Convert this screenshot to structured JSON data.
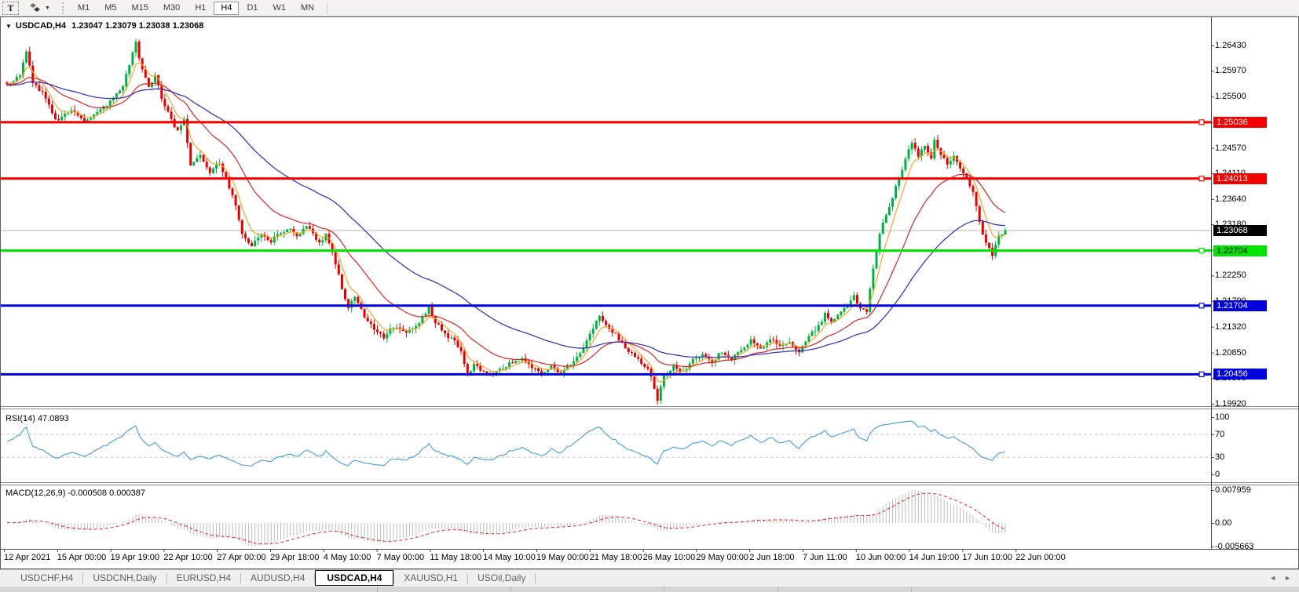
{
  "toolbar": {
    "text_tool_label": "T",
    "dropdown_glyph": "▼",
    "timeframes": [
      "M1",
      "M5",
      "M15",
      "M30",
      "H1",
      "H4",
      "D1",
      "W1",
      "MN"
    ],
    "active_timeframe": "H4"
  },
  "chart_header": {
    "collapse_glyph": "▼",
    "symbol": "USDCAD,H4",
    "ohlc": "1.23047 1.23079 1.23038 1.23068"
  },
  "indicators": {
    "rsi_label": "RSI(14) 47.0893",
    "macd_label": "MACD(12,26,9) -0.000508 0.000387"
  },
  "tabs": {
    "items": [
      {
        "label": "USDCHF,H4",
        "active": false
      },
      {
        "label": "USDCNH,Daily",
        "active": false
      },
      {
        "label": "EURUSD,H4",
        "active": false
      },
      {
        "label": "AUDUSD,H4",
        "active": false
      },
      {
        "label": "USDCAD,H4",
        "active": true
      },
      {
        "label": "XAUUSD,H1",
        "active": false
      },
      {
        "label": "USOil,Daily",
        "active": false
      }
    ],
    "scroll_left_glyph": "◄",
    "scroll_right_glyph": "►"
  },
  "chart_data": {
    "type": "candlestick",
    "symbol": "USDCAD",
    "period": "H4",
    "ohlc_current": {
      "open": 1.23047,
      "high": 1.23079,
      "low": 1.23038,
      "close": 1.23068
    },
    "bars": 311,
    "bull_color": "#00b140",
    "bear_color": "#e30000",
    "price_axis_ticks": [
      "1.26430",
      "1.25970",
      "1.25500",
      "1.25030",
      "1.24570",
      "1.24110",
      "1.23640",
      "1.23180",
      "1.22710",
      "1.22250",
      "1.21790",
      "1.21320",
      "1.20850",
      "1.20390",
      "1.19920"
    ],
    "close_waypoints": [
      [
        0,
        1.2572
      ],
      [
        4,
        1.259
      ],
      [
        6,
        1.2634
      ],
      [
        8,
        1.2576
      ],
      [
        12,
        1.2549
      ],
      [
        15,
        1.2506
      ],
      [
        20,
        1.2528
      ],
      [
        24,
        1.2506
      ],
      [
        28,
        1.2522
      ],
      [
        32,
        1.254
      ],
      [
        36,
        1.257
      ],
      [
        40,
        1.2648
      ],
      [
        42,
        1.2598
      ],
      [
        44,
        1.2568
      ],
      [
        46,
        1.2586
      ],
      [
        48,
        1.2548
      ],
      [
        51,
        1.2508
      ],
      [
        53,
        1.2486
      ],
      [
        55,
        1.2506
      ],
      [
        57,
        1.2428
      ],
      [
        60,
        1.2442
      ],
      [
        63,
        1.241
      ],
      [
        66,
        1.243
      ],
      [
        69,
        1.2386
      ],
      [
        71,
        1.2352
      ],
      [
        73,
        1.2302
      ],
      [
        76,
        1.2278
      ],
      [
        79,
        1.23
      ],
      [
        82,
        1.2288
      ],
      [
        85,
        1.2304
      ],
      [
        88,
        1.2312
      ],
      [
        90,
        1.2294
      ],
      [
        93,
        1.2318
      ],
      [
        95,
        1.23
      ],
      [
        97,
        1.2282
      ],
      [
        99,
        1.2302
      ],
      [
        101,
        1.227
      ],
      [
        104,
        1.2202
      ],
      [
        106,
        1.2168
      ],
      [
        108,
        1.2188
      ],
      [
        111,
        1.2152
      ],
      [
        114,
        1.213
      ],
      [
        117,
        1.2112
      ],
      [
        120,
        1.2132
      ],
      [
        124,
        1.212
      ],
      [
        128,
        1.214
      ],
      [
        131,
        1.2168
      ],
      [
        133,
        1.214
      ],
      [
        136,
        1.212
      ],
      [
        139,
        1.2104
      ],
      [
        141,
        1.2086
      ],
      [
        143,
        1.204
      ],
      [
        145,
        1.2062
      ],
      [
        148,
        1.205
      ],
      [
        151,
        1.2046
      ],
      [
        154,
        1.2058
      ],
      [
        157,
        1.2068
      ],
      [
        160,
        1.2072
      ],
      [
        163,
        1.206
      ],
      [
        166,
        1.2046
      ],
      [
        169,
        1.2062
      ],
      [
        172,
        1.2046
      ],
      [
        175,
        1.2066
      ],
      [
        178,
        1.2084
      ],
      [
        181,
        1.212
      ],
      [
        184,
        1.2152
      ],
      [
        186,
        1.2136
      ],
      [
        189,
        1.2118
      ],
      [
        192,
        1.2092
      ],
      [
        195,
        1.208
      ],
      [
        198,
        1.2062
      ],
      [
        200,
        1.2044
      ],
      [
        202,
        1.2
      ],
      [
        204,
        1.2042
      ],
      [
        207,
        1.2062
      ],
      [
        210,
        1.205
      ],
      [
        213,
        1.2072
      ],
      [
        216,
        1.2082
      ],
      [
        219,
        1.2066
      ],
      [
        222,
        1.2088
      ],
      [
        225,
        1.2072
      ],
      [
        228,
        1.2092
      ],
      [
        231,
        1.2106
      ],
      [
        234,
        1.209
      ],
      [
        237,
        1.2112
      ],
      [
        240,
        1.2096
      ],
      [
        243,
        1.2106
      ],
      [
        246,
        1.2086
      ],
      [
        249,
        1.2116
      ],
      [
        252,
        1.2132
      ],
      [
        254,
        1.2156
      ],
      [
        256,
        1.2142
      ],
      [
        258,
        1.215
      ],
      [
        261,
        1.2172
      ],
      [
        263,
        1.219
      ],
      [
        265,
        1.2162
      ],
      [
        267,
        1.2158
      ],
      [
        269,
        1.224
      ],
      [
        271,
        1.23
      ],
      [
        273,
        1.2338
      ],
      [
        275,
        1.2368
      ],
      [
        277,
        1.2402
      ],
      [
        279,
        1.2438
      ],
      [
        281,
        1.2466
      ],
      [
        283,
        1.2442
      ],
      [
        285,
        1.246
      ],
      [
        287,
        1.244
      ],
      [
        288,
        1.247
      ],
      [
        290,
        1.2444
      ],
      [
        292,
        1.2426
      ],
      [
        294,
        1.244
      ],
      [
        296,
        1.242
      ],
      [
        298,
        1.2404
      ],
      [
        300,
        1.2378
      ],
      [
        302,
        1.2322
      ],
      [
        304,
        1.2284
      ],
      [
        306,
        1.2262
      ],
      [
        308,
        1.2296
      ],
      [
        310,
        1.23068
      ]
    ],
    "moving_averages": [
      {
        "name": "fast",
        "period": 6,
        "color": "#f7a52a"
      },
      {
        "name": "medium",
        "period": 22,
        "color": "#e02424"
      },
      {
        "name": "slow",
        "period": 55,
        "color": "#2a2ac0"
      }
    ],
    "horizontal_lines": [
      {
        "price": 1.25036,
        "label": "1.25036",
        "color": "#f40000",
        "text": "#ffffff"
      },
      {
        "price": 1.24013,
        "label": "1.24013",
        "color": "#f40000",
        "text": "#ffffff"
      },
      {
        "price": 1.22704,
        "label": "1.22704",
        "color": "#00e400",
        "text": "#000000"
      },
      {
        "price": 1.21704,
        "label": "1.21704",
        "color": "#0000dc",
        "text": "#ffffff"
      },
      {
        "price": 1.20456,
        "label": "1.20456",
        "color": "#0000dc",
        "text": "#ffffff"
      }
    ],
    "current_price": {
      "price": 1.23068,
      "label": "1.23068",
      "line_color": "#b4b4b4",
      "bg": "#000000",
      "text": "#ffffff"
    },
    "rsi": {
      "period": 14,
      "current": 47.0893,
      "levels": [
        70,
        30
      ],
      "axis_labels": [
        "100",
        "70",
        "30",
        "0"
      ],
      "color": "#459be0"
    },
    "macd": {
      "fast": 12,
      "slow": 26,
      "signal_period": 9,
      "main": -0.000508,
      "signal": 0.000387,
      "axis_labels": [
        "0.007959",
        "0.00",
        "-0.005663"
      ],
      "hist_color": "#bcbcbc",
      "signal_color": "#e02424"
    },
    "time_labels": [
      "12 Apr 2021",
      "15 Apr 00:00",
      "19 Apr 19:00",
      "22 Apr 10:00",
      "27 Apr 00:00",
      "29 Apr 18:00",
      "4 May 10:00",
      "7 May 00:00",
      "11 May 18:00",
      "14 May 10:00",
      "19 May 00:00",
      "21 May 18:00",
      "26 May 10:00",
      "29 May 00:00",
      "2 Jun 18:00",
      "7 Jun 11:00",
      "10 Jun 00:00",
      "14 Jun 19:00",
      "17 Jun 10:00",
      "22 Jun 00:00"
    ]
  }
}
